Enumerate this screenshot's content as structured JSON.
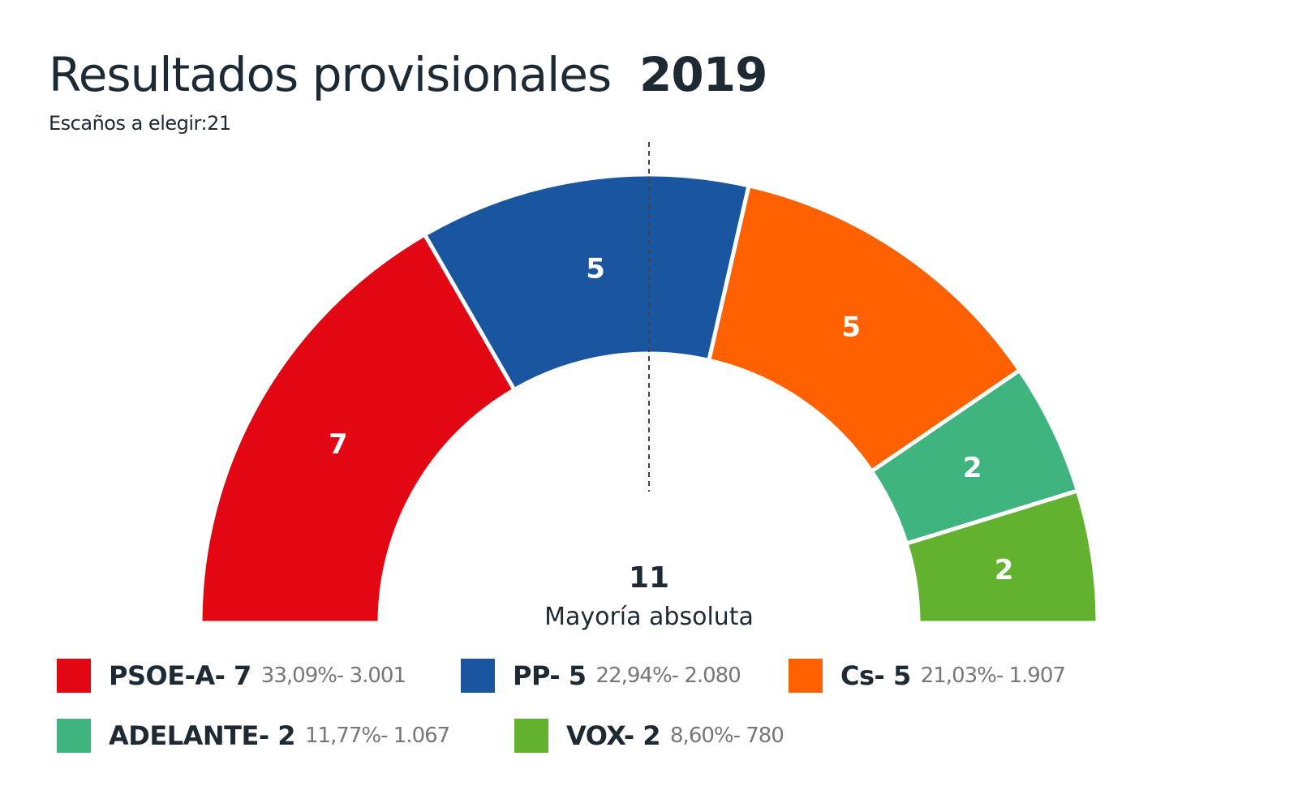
{
  "chart_data": {
    "type": "pie",
    "variant": "half-donut (parliament)",
    "title": "Resultados provisionales",
    "year": "2019",
    "subtitle": "Escaños a elegir:21",
    "total_seats": 21,
    "majority": {
      "value": "11",
      "label": "Mayoría absoluta"
    },
    "legend_position": "bottom",
    "series": [
      {
        "name": "PSOE-A",
        "seats": 7,
        "percent": "33,09%",
        "votes": "3.001",
        "color": "#e30613"
      },
      {
        "name": "PP",
        "seats": 5,
        "percent": "22,94%",
        "votes": "2.080",
        "color": "#1a56a0"
      },
      {
        "name": "Cs",
        "seats": 5,
        "percent": "21,03%",
        "votes": "1.907",
        "color": "#ff6000"
      },
      {
        "name": "ADELANTE",
        "seats": 2,
        "percent": "11,77%",
        "votes": "1.067",
        "color": "#3fb47f"
      },
      {
        "name": "VOX",
        "seats": 2,
        "percent": "8,60%",
        "votes": "780",
        "color": "#62b22f"
      }
    ]
  }
}
